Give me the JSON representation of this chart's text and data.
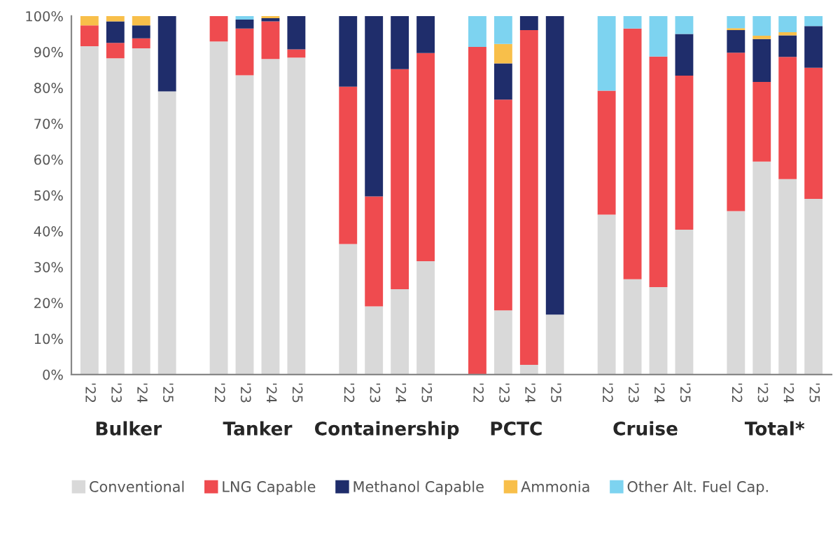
{
  "chart_data": {
    "type": "bar",
    "stacked": true,
    "legend": "bottom",
    "grid": false,
    "categories": [
      "'22",
      "'23",
      "'24",
      "'25",
      "'22",
      "'23",
      "'24",
      "'25",
      "'22",
      "'23",
      "'24",
      "'25",
      "'22",
      "'23",
      "'24",
      "'25",
      "'22",
      "'23",
      "'24",
      "'25",
      "'22",
      "'23",
      "'24",
      "'25"
    ],
    "series": [
      {
        "name": "Conventional",
        "color": "#d9d9d9",
        "values": [
          91.6,
          88.2,
          91.0,
          79.0,
          92.9,
          83.5,
          88.0,
          88.4,
          36.4,
          19.0,
          23.8,
          31.6,
          0,
          17.9,
          2.7,
          16.7,
          44.6,
          26.6,
          24.4,
          40.4,
          45.6,
          59.4,
          54.5,
          49.0
        ]
      },
      {
        "name": "LNG Capable",
        "color": "#ef4b4f",
        "values": [
          5.8,
          4.3,
          2.8,
          0,
          7.1,
          13.0,
          10.5,
          2.3,
          43.9,
          30.7,
          61.4,
          58.1,
          91.4,
          58.8,
          93.4,
          0,
          34.6,
          69.9,
          64.3,
          43.0,
          44.2,
          22.2,
          34.1,
          36.6
        ]
      },
      {
        "name": "Methanol Capable",
        "color": "#1f2d6b",
        "values": [
          0,
          6.0,
          3.6,
          21.0,
          0,
          2.5,
          0.9,
          9.3,
          19.7,
          50.3,
          14.8,
          10.3,
          0,
          10.1,
          3.9,
          83.3,
          0,
          0,
          0,
          11.6,
          6.3,
          12.0,
          6.0,
          11.6
        ]
      },
      {
        "name": "Ammonia",
        "color": "#f8bf4a",
        "values": [
          2.6,
          1.5,
          2.6,
          0,
          0,
          0,
          0.6,
          0,
          0,
          0,
          0,
          0,
          0,
          5.4,
          0,
          0,
          0,
          0,
          0,
          0,
          0.5,
          0.9,
          0.9,
          0
        ]
      },
      {
        "name": "Other Alt. Fuel Cap.",
        "color": "#7dd3f0",
        "values": [
          0,
          0,
          0,
          0,
          0,
          1.0,
          0,
          0,
          0,
          0,
          0,
          0,
          8.6,
          7.8,
          0,
          0,
          20.8,
          3.5,
          11.3,
          5.0,
          3.4,
          5.5,
          4.5,
          2.8
        ]
      }
    ],
    "ylim": [
      0,
      100
    ],
    "yticks": [
      {
        "value": 0,
        "label": "0%"
      },
      {
        "value": 10,
        "label": "10%"
      },
      {
        "value": 20,
        "label": "20%"
      },
      {
        "value": 30,
        "label": "30%"
      },
      {
        "value": 40,
        "label": "40%"
      },
      {
        "value": 50,
        "label": "50%"
      },
      {
        "value": 60,
        "label": "60%"
      },
      {
        "value": 70,
        "label": "70%"
      },
      {
        "value": 80,
        "label": "80%"
      },
      {
        "value": 90,
        "label": "90%"
      },
      {
        "value": 100,
        "label": "100%"
      }
    ],
    "annotations": [
      "Bulker",
      "Tanker",
      "Containership",
      "PCTC",
      "Cruise",
      "Total*"
    ]
  }
}
